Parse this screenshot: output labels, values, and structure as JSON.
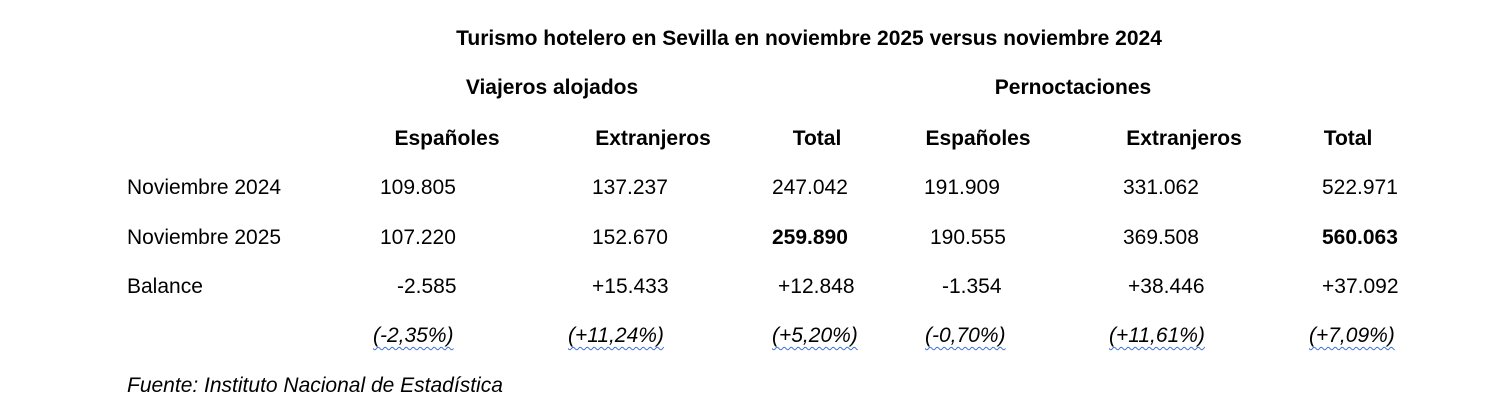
{
  "title": "Turismo hotelero en Sevilla en noviembre 2025 versus noviembre 2024",
  "groups": {
    "viajeros": "Viajeros alojados",
    "pernoctaciones": "Pernoctaciones"
  },
  "columns": [
    "Españoles",
    "Extranjeros",
    "Total",
    "Españoles",
    "Extranjeros",
    "Total"
  ],
  "rows": [
    {
      "label": "Noviembre 2024",
      "values": [
        "109.805",
        "137.237",
        "247.042",
        "191.909",
        "331.062",
        "522.971"
      ]
    },
    {
      "label": "Noviembre 2025",
      "values": [
        "107.220",
        "152.670",
        "259.890",
        "190.555",
        "369.508",
        "560.063"
      ]
    },
    {
      "label": "Balance",
      "values": [
        "-2.585",
        "+15.433",
        "+12.848",
        "-1.354",
        "+38.446",
        "+37.092"
      ]
    }
  ],
  "percentages": [
    "(-2,35%)",
    "(+11,24%)",
    "(+5,20%)",
    "(-0,70%)",
    "(+11,61%)",
    "(+7,09%)"
  ],
  "source": "Fuente: Instituto Nacional de Estadística"
}
